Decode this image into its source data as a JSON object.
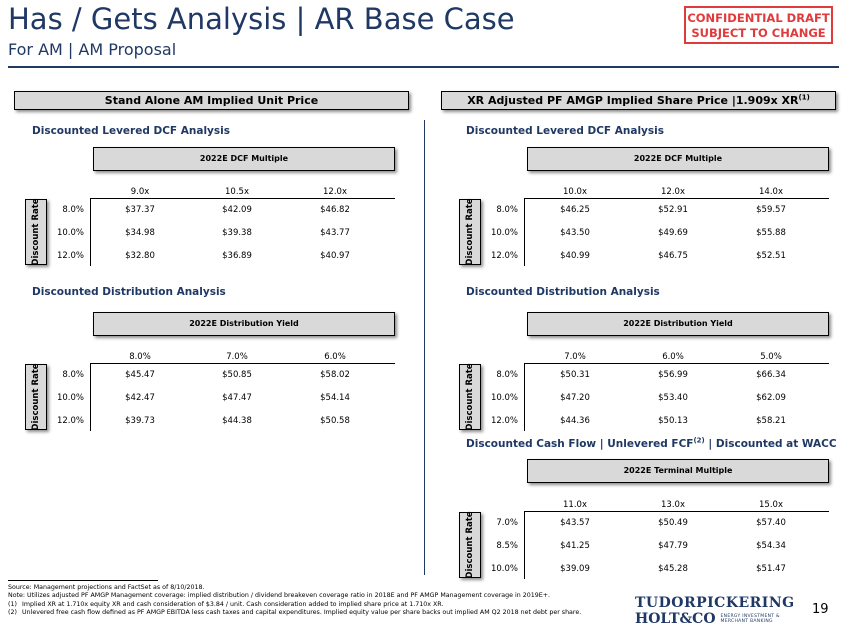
{
  "header": {
    "title": "Has / Gets Analysis | AR Base Case",
    "subtitle": "For AM | AM Proposal",
    "confidential_line1": "CONFIDENTIAL DRAFT",
    "confidential_line2": "SUBJECT TO CHANGE"
  },
  "left": {
    "section_title": "Stand Alone AM Implied Unit Price",
    "dcf": {
      "title": "Discounted Levered DCF Analysis",
      "header": "2022E DCF Multiple",
      "columns": [
        "9.0x",
        "10.5x",
        "12.0x"
      ],
      "rate_label": "Discount Rate",
      "rows": [
        {
          "rate": "8.0%",
          "values": [
            "$37.37",
            "$42.09",
            "$46.82"
          ]
        },
        {
          "rate": "10.0%",
          "values": [
            "$34.98",
            "$39.38",
            "$43.77"
          ]
        },
        {
          "rate": "12.0%",
          "values": [
            "$32.80",
            "$36.89",
            "$40.97"
          ]
        }
      ]
    },
    "dist": {
      "title": "Discounted Distribution Analysis",
      "header": "2022E Distribution Yield",
      "columns": [
        "8.0%",
        "7.0%",
        "6.0%"
      ],
      "rate_label": "Discount Rate",
      "rows": [
        {
          "rate": "8.0%",
          "values": [
            "$45.47",
            "$50.85",
            "$58.02"
          ]
        },
        {
          "rate": "10.0%",
          "values": [
            "$42.47",
            "$47.47",
            "$54.14"
          ]
        },
        {
          "rate": "12.0%",
          "values": [
            "$39.73",
            "$44.38",
            "$50.58"
          ]
        }
      ]
    }
  },
  "right": {
    "section_title": "XR Adjusted PF AMGP Implied Share Price |1.909x XR",
    "section_sup": "(1)",
    "dcf": {
      "title": "Discounted Levered DCF Analysis",
      "header": "2022E DCF Multiple",
      "columns": [
        "10.0x",
        "12.0x",
        "14.0x"
      ],
      "rate_label": "Discount Rate",
      "rows": [
        {
          "rate": "8.0%",
          "values": [
            "$46.25",
            "$52.91",
            "$59.57"
          ]
        },
        {
          "rate": "10.0%",
          "values": [
            "$43.50",
            "$49.69",
            "$55.88"
          ]
        },
        {
          "rate": "12.0%",
          "values": [
            "$40.99",
            "$46.75",
            "$52.51"
          ]
        }
      ]
    },
    "dist": {
      "title": "Discounted Distribution Analysis",
      "header": "2022E Distribution Yield",
      "columns": [
        "7.0%",
        "6.0%",
        "5.0%"
      ],
      "rate_label": "Discount Rate",
      "rows": [
        {
          "rate": "8.0%",
          "values": [
            "$50.31",
            "$56.99",
            "$66.34"
          ]
        },
        {
          "rate": "10.0%",
          "values": [
            "$47.20",
            "$53.40",
            "$62.09"
          ]
        },
        {
          "rate": "12.0%",
          "values": [
            "$44.36",
            "$50.13",
            "$58.21"
          ]
        }
      ]
    },
    "fcf": {
      "title_part1": "Discounted Cash Flow | Unlevered FCF",
      "title_sup": "(2)",
      "title_part2": " | Discounted at WACC",
      "header": "2022E Terminal Multiple",
      "columns": [
        "11.0x",
        "13.0x",
        "15.0x"
      ],
      "rate_label": "Discount Rate",
      "rows": [
        {
          "rate": "7.0%",
          "values": [
            "$43.57",
            "$50.49",
            "$57.40"
          ]
        },
        {
          "rate": "8.5%",
          "values": [
            "$41.25",
            "$47.79",
            "$54.34"
          ]
        },
        {
          "rate": "10.0%",
          "values": [
            "$39.09",
            "$45.28",
            "$51.47"
          ]
        }
      ]
    }
  },
  "footer": {
    "source": "Source: Management projections and FactSet as of 8/10/2018.",
    "note": "Note: Utilizes adjusted PF AMGP Management coverage: implied distribution / dividend breakeven coverage ratio in 2018E and PF AMGP Management coverage in 2019E+.",
    "fn1_num": "(1)",
    "fn1": "Implied XR at 1.710x equity XR and cash consideration of $3.84 / unit. Cash consideration added to implied share price at 1.710x XR.",
    "fn2_num": "(2)",
    "fn2": "Unlevered free cash flow defined as PF AMGP EBITDA less cash taxes and capital expenditures. Implied equity value per share backs out implied AM Q2 2018 net debt per share.",
    "logo_top": "TUDORPICKERING",
    "logo_bottom": "HOLT&CO",
    "logo_tag1": "ENERGY INVESTMENT &",
    "logo_tag2": "MERCHANT BANKING",
    "page_number": "19"
  }
}
